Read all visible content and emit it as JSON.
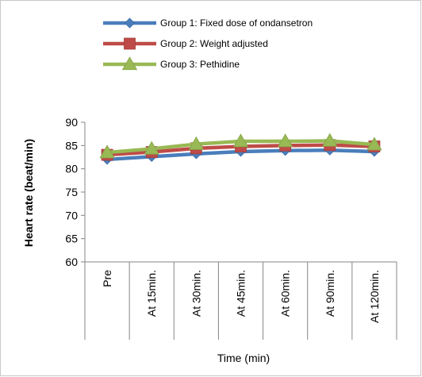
{
  "chart_data": {
    "type": "line",
    "categories": [
      "Pre",
      "At 15min.",
      "At 30min.",
      "At 45min.",
      "At 60min.",
      "At 90min.",
      "At 120min."
    ],
    "series": [
      {
        "name": "Group 1: Fixed dose of ondansetron",
        "values": [
          82.0,
          82.6,
          83.2,
          83.7,
          83.9,
          84.0,
          83.7
        ],
        "color": "#4a7ebb",
        "marker": "diamond"
      },
      {
        "name": "Group 2: Weight adjusted",
        "values": [
          83.0,
          83.6,
          84.4,
          84.8,
          85.0,
          85.1,
          84.8
        ],
        "color": "#be4b48",
        "marker": "square"
      },
      {
        "name": "Group 3: Pethidine",
        "values": [
          83.5,
          84.3,
          85.3,
          85.9,
          85.9,
          86.0,
          85.2
        ],
        "color": "#98b954",
        "marker": "triangle"
      }
    ],
    "ylim": [
      60,
      90
    ],
    "yticks": [
      60,
      65,
      70,
      75,
      80,
      85,
      90
    ],
    "xlabel": "Time (min)",
    "ylabel": "Heart rate (beat/min)",
    "legend_position": "top-center",
    "grid": false
  }
}
